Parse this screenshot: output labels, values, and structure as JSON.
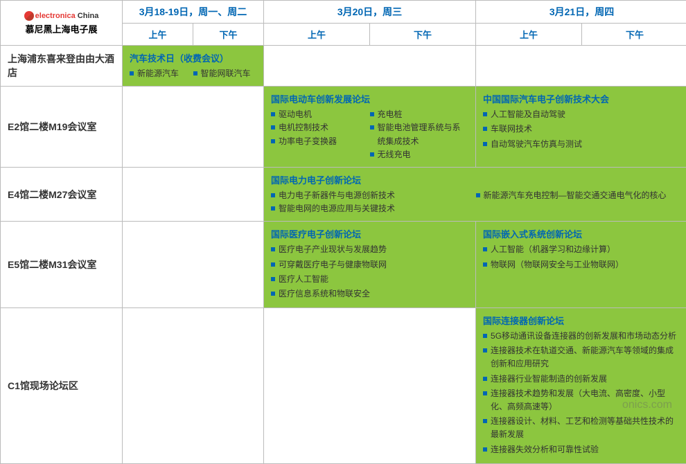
{
  "logo": {
    "brand": "electronica",
    "region": "China",
    "subtitle": "慕尼黑上海电子展"
  },
  "colors": {
    "accent_blue": "#0066b3",
    "cell_green": "#8cc63f",
    "border": "#bbbbbb",
    "text": "#333333",
    "logo_red": "#e53935"
  },
  "col_widths": {
    "venue": 176,
    "half": 102,
    "half_wide": 153
  },
  "headers": {
    "dates": [
      {
        "label": "3月18-19日，周一、周二",
        "span": 2
      },
      {
        "label": "3月20日，周三",
        "span": 2
      },
      {
        "label": "3月21日，周四",
        "span": 2
      }
    ],
    "periods": [
      "上午",
      "下午"
    ]
  },
  "rows": [
    {
      "venue": "上海浦东喜来登由由大酒店",
      "cells": [
        {
          "colspan": 2,
          "green": true,
          "title": "汽车技术日（收费会议）",
          "columns": [
            [
              "新能源汽车"
            ],
            [
              "智能网联汽车"
            ]
          ]
        },
        {
          "colspan": 2,
          "empty": true
        },
        {
          "colspan": 2,
          "empty": true
        }
      ]
    },
    {
      "venue": "E2馆二楼M19会议室",
      "cells": [
        {
          "colspan": 2,
          "empty": true
        },
        {
          "colspan": 2,
          "green": true,
          "title": "国际电动车创新发展论坛",
          "columns": [
            [
              "驱动电机",
              "电机控制技术",
              "功率电子变换器"
            ],
            [
              "充电桩",
              "智能电池管理系统与系统集成技术",
              "无线充电"
            ]
          ]
        },
        {
          "colspan": 2,
          "green": true,
          "title": "中国国际汽车电子创新技术大会",
          "items": [
            "人工智能及自动驾驶",
            "车联网技术",
            "自动驾驶汽车仿真与测试"
          ]
        }
      ]
    },
    {
      "venue": "E4馆二楼M27会议室",
      "cells": [
        {
          "colspan": 2,
          "empty": true
        },
        {
          "colspan": 4,
          "green": true,
          "title": "国际电力电子创新论坛",
          "columns": [
            [
              "电力电子新器件与电源创新技术",
              "智能电网的电源应用与关键技术"
            ],
            [
              "新能源汽车充电控制—智能交通交通电气化的核心"
            ]
          ]
        }
      ]
    },
    {
      "venue": "E5馆二楼M31会议室",
      "cells": [
        {
          "colspan": 2,
          "empty": true
        },
        {
          "colspan": 2,
          "green": true,
          "title": "国际医疗电子创新论坛",
          "items": [
            "医疗电子产业现状与发展趋势",
            "可穿戴医疗电子与健康物联网",
            "医疗人工智能",
            "医疗信息系统和物联安全"
          ]
        },
        {
          "colspan": 2,
          "green": true,
          "title": "国际嵌入式系统创新论坛",
          "items": [
            "人工智能（机器学习和边缘计算）",
            "物联网（物联网安全与工业物联网）"
          ]
        }
      ]
    },
    {
      "venue": "C1馆现场论坛区",
      "cells": [
        {
          "colspan": 2,
          "empty": true
        },
        {
          "colspan": 2,
          "empty": true
        },
        {
          "colspan": 2,
          "green": true,
          "title": "国际连接器创新论坛",
          "items": [
            "5G移动通讯设备连接器的创新发展和市场动态分析",
            "连接器技术在轨道交通、新能源汽车等领域的集成创新和应用研究",
            "连接器行业智能制造的创新发展",
            "连接器技术趋势和发展（大电流、高密度、小型化、高频高速等）",
            "连接器设计、材料、工艺和检测等基础共性技术的最新发展",
            "连接器失效分析和可靠性试验"
          ]
        }
      ]
    }
  ],
  "watermark": "onics.com"
}
